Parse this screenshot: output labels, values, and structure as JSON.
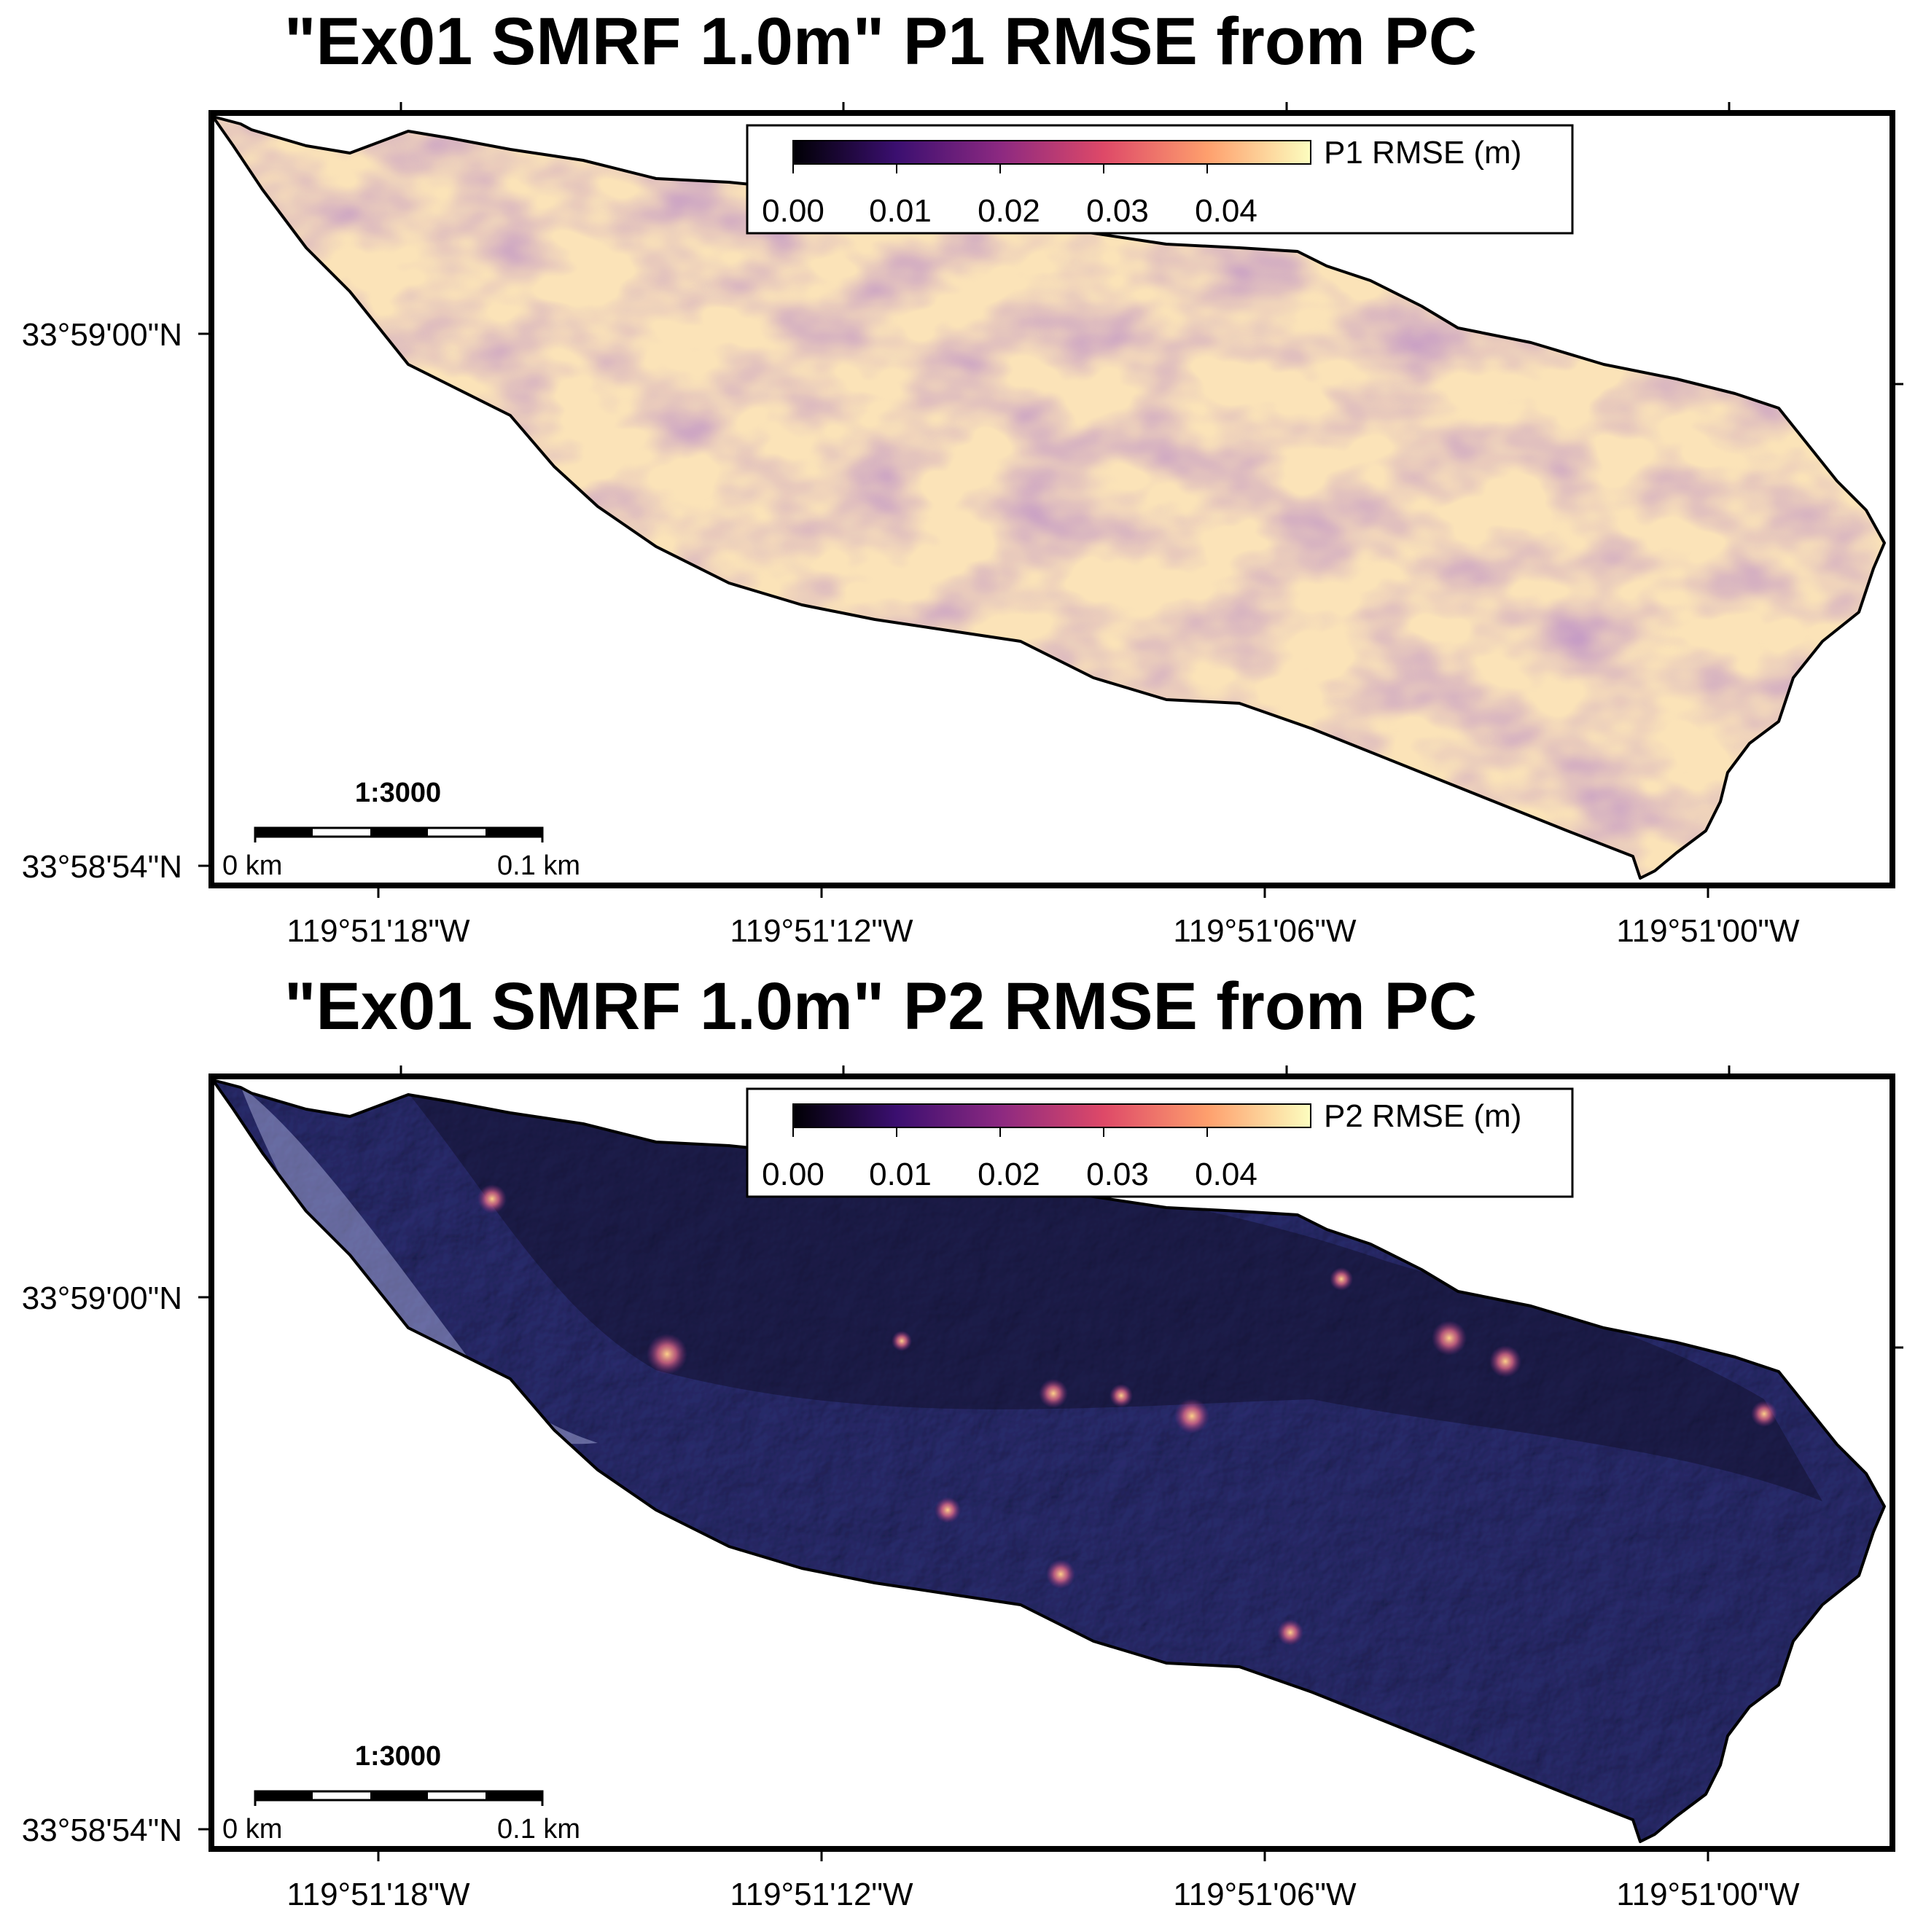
{
  "panels": [
    {
      "id": "p1",
      "title": "\"Ex01 SMRF 1.0m\" P1 RMSE from PC",
      "colorbar": {
        "label": "P1 RMSE (m)",
        "ticks": [
          "0.00",
          "0.01",
          "0.02",
          "0.03",
          "0.04"
        ],
        "min": 0.0,
        "max": 0.05
      },
      "lat_labels": [
        "33°59'00\"N",
        "33°58'54\"N"
      ],
      "lon_labels": [
        "119°51'18\"W",
        "119°51'12\"W",
        "119°51'06\"W",
        "119°51'00\"W"
      ],
      "scale": {
        "ratio": "1:3000",
        "start": "0 km",
        "end": "0.1 km"
      },
      "style": "bright"
    },
    {
      "id": "p2",
      "title": "\"Ex01 SMRF 1.0m\" P2 RMSE from PC",
      "colorbar": {
        "label": "P2 RMSE (m)",
        "ticks": [
          "0.00",
          "0.01",
          "0.02",
          "0.03",
          "0.04"
        ],
        "min": 0.0,
        "max": 0.05
      },
      "lat_labels": [
        "33°59'00\"N",
        "33°58'54\"N"
      ],
      "lon_labels": [
        "119°51'18\"W",
        "119°51'12\"W",
        "119°51'06\"W",
        "119°51'00\"W"
      ],
      "scale": {
        "ratio": "1:3000",
        "start": "0 km",
        "end": "0.1 km"
      },
      "style": "dark"
    }
  ],
  "colormap": {
    "name": "magma",
    "stops": [
      "#000004",
      "#3b0f70",
      "#8c2981",
      "#de4968",
      "#fe9f6d",
      "#fcfdbf"
    ]
  },
  "colors": {
    "p1_fill": "#fff4c0",
    "p2_fill": "#505089",
    "outline": "#000000"
  }
}
